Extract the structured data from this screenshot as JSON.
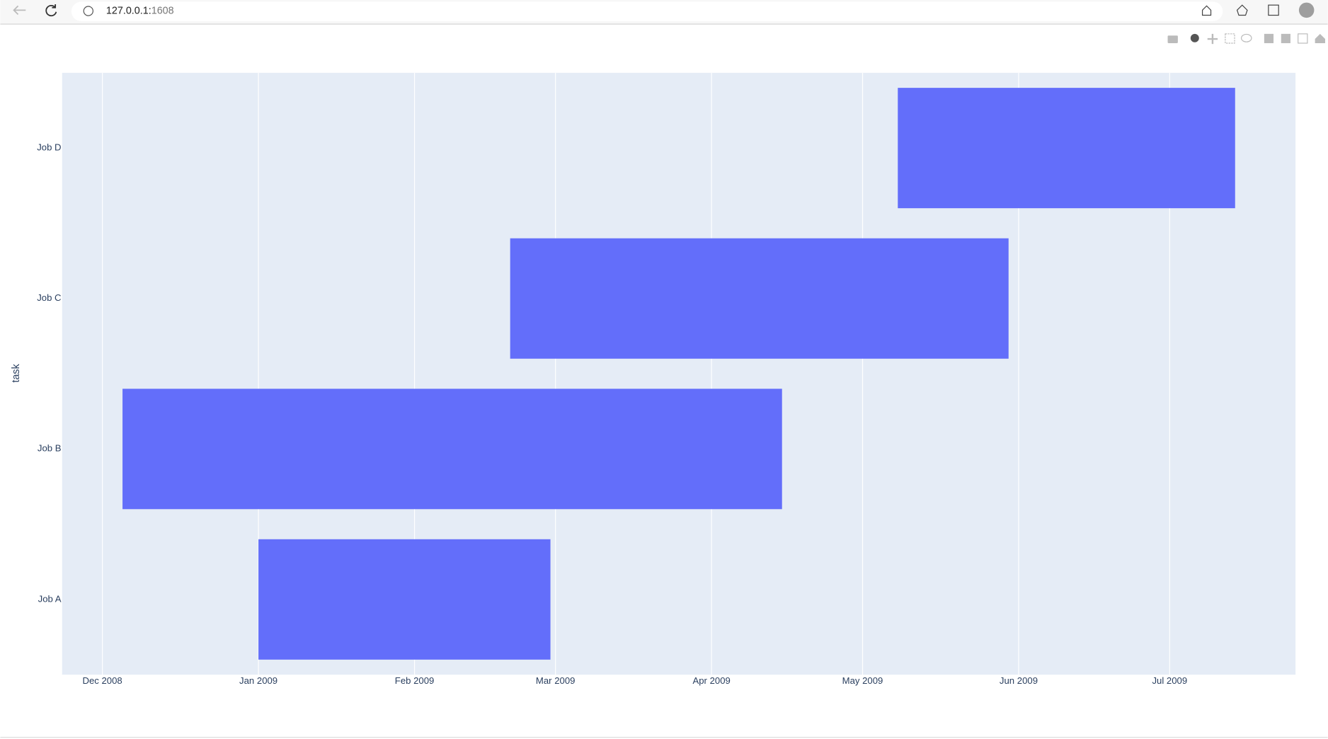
{
  "browser": {
    "url_host": "127.0.0.1:",
    "url_port": "1608"
  },
  "chart_data": {
    "type": "timeline",
    "y_label": "task",
    "categories": [
      "Job A",
      "Job B",
      "Job C",
      "Job D"
    ],
    "starts": [
      "2009-01-01",
      "2008-12-05",
      "2009-02-20",
      "2009-05-08"
    ],
    "ends": [
      "2009-02-28",
      "2009-04-15",
      "2009-05-30",
      "2009-07-14"
    ],
    "color": "#636efa",
    "xlim": [
      "2008-11-23",
      "2009-07-26"
    ],
    "xticks": [
      {
        "value": "2008-12-01",
        "label": "Dec 2008"
      },
      {
        "value": "2009-01-01",
        "label": "Jan 2009"
      },
      {
        "value": "2009-02-01",
        "label": "Feb 2009"
      },
      {
        "value": "2009-03-01",
        "label": "Mar 2009"
      },
      {
        "value": "2009-04-01",
        "label": "Apr 2009"
      },
      {
        "value": "2009-05-01",
        "label": "May 2009"
      },
      {
        "value": "2009-06-01",
        "label": "Jun 2009"
      },
      {
        "value": "2009-07-01",
        "label": "Jul 2009"
      }
    ],
    "grid": true
  }
}
